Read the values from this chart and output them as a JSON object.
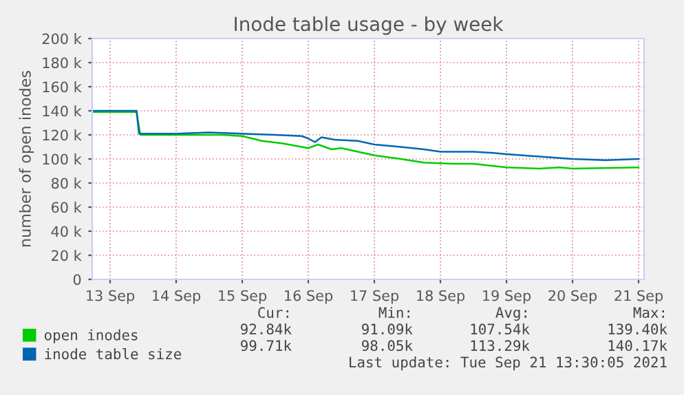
{
  "chart_data": {
    "type": "line",
    "title": "Inode table usage - by week",
    "ylabel": "number of open inodes",
    "xlim": [
      "2021-09-12T17:30",
      "2021-09-21T02:00"
    ],
    "xticks": [
      {
        "value": "2021-09-13",
        "label": "13 Sep"
      },
      {
        "value": "2021-09-14",
        "label": "14 Sep"
      },
      {
        "value": "2021-09-15",
        "label": "15 Sep"
      },
      {
        "value": "2021-09-16",
        "label": "16 Sep"
      },
      {
        "value": "2021-09-17",
        "label": "17 Sep"
      },
      {
        "value": "2021-09-18",
        "label": "18 Sep"
      },
      {
        "value": "2021-09-19",
        "label": "19 Sep"
      },
      {
        "value": "2021-09-20",
        "label": "20 Sep"
      },
      {
        "value": "2021-09-21",
        "label": "21 Sep"
      }
    ],
    "ylim": [
      0,
      200000
    ],
    "yticks": [
      {
        "value": 0,
        "label": "0"
      },
      {
        "value": 20000,
        "label": "20 k"
      },
      {
        "value": 40000,
        "label": "40 k"
      },
      {
        "value": 60000,
        "label": "60 k"
      },
      {
        "value": 80000,
        "label": "80 k"
      },
      {
        "value": 100000,
        "label": "100 k"
      },
      {
        "value": 120000,
        "label": "120 k"
      },
      {
        "value": 140000,
        "label": "140 k"
      },
      {
        "value": 160000,
        "label": "160 k"
      },
      {
        "value": 180000,
        "label": "180 k"
      },
      {
        "value": 200000,
        "label": "200 k"
      }
    ],
    "grid": true,
    "legend": "bottom",
    "marker": "none",
    "line_style": "solid",
    "series": [
      {
        "name": "open inodes",
        "color": "#00cc00",
        "x": [
          "2021-09-12T17:30",
          "2021-09-13T09:36",
          "2021-09-13T11:00",
          "2021-09-14T00:00",
          "2021-09-14T16:48",
          "2021-09-15T00:00",
          "2021-09-15T07:12",
          "2021-09-15T14:24",
          "2021-09-15T19:12",
          "2021-09-16T00:00",
          "2021-09-16T03:36",
          "2021-09-16T08:24",
          "2021-09-16T12:00",
          "2021-09-17T00:00",
          "2021-09-17T09:36",
          "2021-09-17T18:00",
          "2021-09-18T04:48",
          "2021-09-18T12:00",
          "2021-09-19T00:00",
          "2021-09-19T12:00",
          "2021-09-19T19:12",
          "2021-09-20T00:00",
          "2021-09-21T00:00"
        ],
        "values": [
          139000,
          139000,
          120000,
          120000,
          120000,
          119000,
          115000,
          113000,
          111000,
          109000,
          112000,
          108000,
          109000,
          103000,
          100000,
          97000,
          96000,
          96000,
          93000,
          92000,
          93000,
          92000,
          93000
        ]
      },
      {
        "name": "inode table size",
        "color": "#0066b3",
        "x": [
          "2021-09-12T17:30",
          "2021-09-13T09:36",
          "2021-09-13T10:30",
          "2021-09-14T00:00",
          "2021-09-14T12:00",
          "2021-09-15T00:00",
          "2021-09-15T12:00",
          "2021-09-15T21:36",
          "2021-09-16T00:00",
          "2021-09-16T02:24",
          "2021-09-16T04:48",
          "2021-09-16T09:36",
          "2021-09-16T18:00",
          "2021-09-17T00:00",
          "2021-09-17T09:36",
          "2021-09-17T18:00",
          "2021-09-18T00:00",
          "2021-09-18T12:00",
          "2021-09-18T19:12",
          "2021-09-19T00:00",
          "2021-09-19T06:00",
          "2021-09-19T12:00",
          "2021-09-20T00:00",
          "2021-09-20T12:00",
          "2021-09-21T00:00"
        ],
        "values": [
          140000,
          140000,
          121000,
          121000,
          122000,
          121000,
          120000,
          119000,
          117000,
          114000,
          118000,
          116000,
          115000,
          112000,
          110000,
          108000,
          106000,
          106000,
          105000,
          104000,
          103000,
          102000,
          100000,
          99000,
          100000
        ]
      }
    ],
    "annotations": [
      "Cur:",
      "Min:",
      "Avg:",
      "Max:",
      "92.84k",
      "91.09k",
      "107.54k",
      "139.40k",
      "99.71k",
      "98.05k",
      "113.29k",
      "140.17k",
      "Last update: Tue Sep 21 13:30:05 2021"
    ]
  }
}
